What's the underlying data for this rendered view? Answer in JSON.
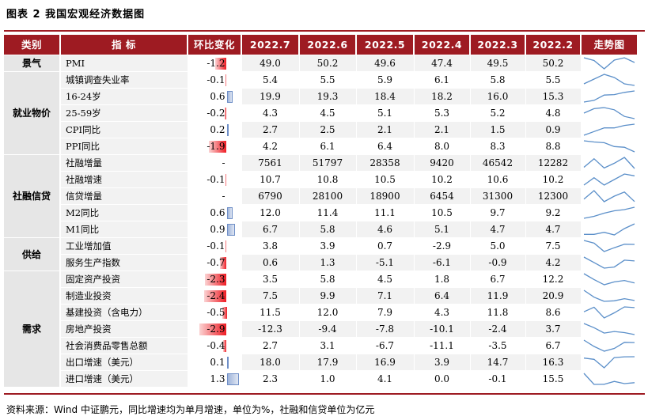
{
  "figure": {
    "title": "图表 2    我国宏观经济数据图",
    "source": "资料来源：Wind  中证鹏元，同比增速均为单月增速，单位为%，社融和信贷单位为亿元"
  },
  "header": {
    "category": "类别",
    "indicator": "指  标",
    "change": "环比变化",
    "months": [
      "2022.7",
      "2022.6",
      "2022.5",
      "2022.4",
      "2022.3",
      "2022.2"
    ],
    "trend": "走势图"
  },
  "colors": {
    "header_bg": "#9e1b22",
    "negative_bar": "#ef1c24",
    "positive_bar": "#9fb4da",
    "spark": "#5b8fc9"
  },
  "groups": [
    {
      "name": "景气",
      "rows": 1
    },
    {
      "name": "就业物价",
      "rows": 5
    },
    {
      "name": "社融信贷",
      "rows": 5
    },
    {
      "name": "供给",
      "rows": 2
    },
    {
      "name": "需求",
      "rows": 7
    }
  ],
  "rows": [
    {
      "indicator": "PMI",
      "change": "-1.2",
      "values": [
        "49.0",
        "50.2",
        "49.6",
        "47.4",
        "49.5",
        "50.2"
      ]
    },
    {
      "indicator": "城镇调查失业率",
      "change": "-0.1",
      "values": [
        "5.4",
        "5.5",
        "5.9",
        "6.1",
        "5.8",
        "5.5"
      ]
    },
    {
      "indicator": "16-24岁",
      "change": "0.6",
      "values": [
        "19.9",
        "19.3",
        "18.4",
        "18.2",
        "16.0",
        "15.3"
      ]
    },
    {
      "indicator": "25-59岁",
      "change": "-0.2",
      "values": [
        "4.3",
        "4.5",
        "5.1",
        "5.3",
        "5.2",
        "4.8"
      ]
    },
    {
      "indicator": "CPI同比",
      "change": "0.2",
      "values": [
        "2.7",
        "2.5",
        "2.1",
        "2.1",
        "1.5",
        "0.9"
      ]
    },
    {
      "indicator": "PPI同比",
      "change": "-1.9",
      "values": [
        "4.2",
        "6.1",
        "6.4",
        "8.0",
        "8.3",
        "8.8"
      ]
    },
    {
      "indicator": "社融增量",
      "change": "-",
      "values": [
        "7561",
        "51797",
        "28358",
        "9420",
        "46542",
        "12282"
      ]
    },
    {
      "indicator": "社融增速",
      "change": "-0.1",
      "values": [
        "10.7",
        "10.8",
        "10.5",
        "10.2",
        "10.6",
        "10.2"
      ]
    },
    {
      "indicator": "信贷增量",
      "change": "-",
      "values": [
        "6790",
        "28100",
        "18900",
        "6454",
        "31300",
        "12300"
      ]
    },
    {
      "indicator": "M2同比",
      "change": "0.6",
      "values": [
        "12.0",
        "11.4",
        "11.1",
        "10.5",
        "9.7",
        "9.2"
      ]
    },
    {
      "indicator": "M1同比",
      "change": "0.9",
      "values": [
        "6.7",
        "5.8",
        "4.6",
        "5.1",
        "4.7",
        "4.7"
      ]
    },
    {
      "indicator": "工业增加值",
      "change": "-0.1",
      "values": [
        "3.8",
        "3.9",
        "0.7",
        "-2.9",
        "5.0",
        "7.5"
      ]
    },
    {
      "indicator": "服务生产指数",
      "change": "-0.7",
      "values": [
        "0.6",
        "1.3",
        "-5.1",
        "-6.1",
        "-0.9",
        "4.2"
      ]
    },
    {
      "indicator": "固定资产投资",
      "change": "-2.3",
      "values": [
        "3.5",
        "5.8",
        "4.5",
        "1.8",
        "6.7",
        "12.2"
      ]
    },
    {
      "indicator": "制造业投资",
      "change": "-2.4",
      "values": [
        "7.5",
        "9.9",
        "7.1",
        "6.4",
        "11.9",
        "20.9"
      ]
    },
    {
      "indicator": "基建投资（含电力）",
      "change": "-0.5",
      "values": [
        "11.5",
        "12.0",
        "7.9",
        "4.3",
        "11.8",
        "8.6"
      ]
    },
    {
      "indicator": "房地产投资",
      "change": "-2.9",
      "values": [
        "-12.3",
        "-9.4",
        "-7.8",
        "-10.1",
        "-2.4",
        "3.7"
      ]
    },
    {
      "indicator": "社会消费品零售总额",
      "change": "-0.4",
      "values": [
        "2.7",
        "3.1",
        "-6.7",
        "-11.1",
        "-3.5",
        "6.7"
      ]
    },
    {
      "indicator": "出口增速（美元）",
      "change": "0.1",
      "values": [
        "18.0",
        "17.9",
        "16.9",
        "3.9",
        "14.7",
        "16.3"
      ]
    },
    {
      "indicator": "进口增速（美元）",
      "change": "1.3",
      "values": [
        "2.3",
        "1.0",
        "4.1",
        "0.0",
        "-0.1",
        "15.5"
      ]
    }
  ]
}
